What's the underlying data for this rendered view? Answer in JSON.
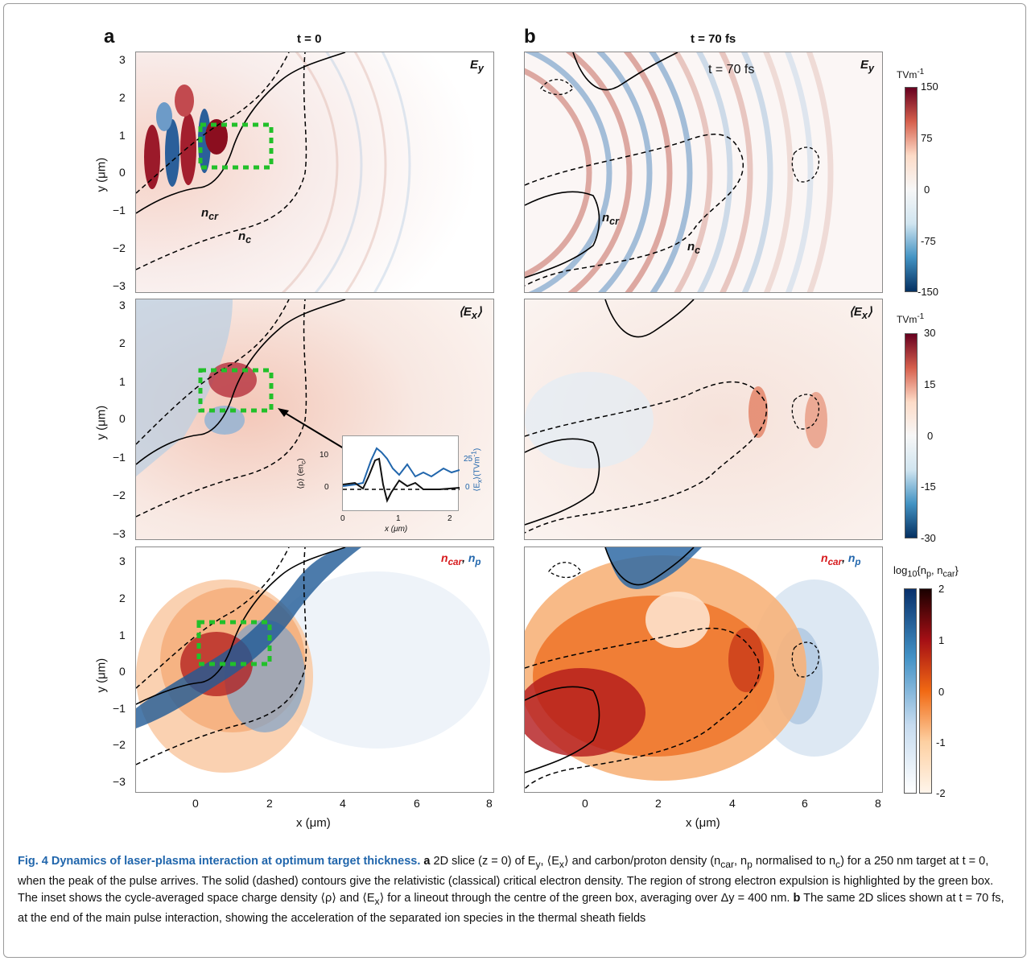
{
  "figure": {
    "panel_a": "a",
    "panel_b": "b",
    "col_a_title": "t = 0",
    "col_b_title": "t = 70 fs",
    "time_annotation": "t = 70 fs",
    "labels": {
      "ey": "E",
      "ey_sub": "y",
      "ex": "⟨E",
      "ex_sub": "x",
      "ex_close": "⟩",
      "ncar": "n",
      "ncar_sub": "car",
      "np": "n",
      "np_sub": "p",
      "ncr": "n",
      "ncr_sub": "cr",
      "nc": "n",
      "nc_sub": "c"
    },
    "y_axis_label": "y (μm)",
    "x_axis_label": "x (μm)",
    "y_ticks": [
      "3",
      "2",
      "1",
      "0",
      "−1",
      "−2",
      "−3"
    ],
    "x_ticks": [
      "0",
      "2",
      "4",
      "6",
      "8"
    ],
    "colorbar_ey": {
      "unit": "TVm",
      "unit_sup": "-1",
      "ticks": [
        "150",
        "75",
        "0",
        "-75",
        "-150"
      ]
    },
    "colorbar_ex": {
      "unit": "TVm",
      "unit_sup": "-1",
      "ticks": [
        "30",
        "15",
        "0",
        "-15",
        "-30"
      ]
    },
    "colorbar_density": {
      "label": "log",
      "label_sub": "10",
      "label_rest": "{n",
      "label_sub2": "p",
      "label_mid": ", n",
      "label_sub3": "car",
      "label_end": "}",
      "ticks": [
        "2",
        "1",
        "0",
        "-1",
        "-2"
      ]
    },
    "inset": {
      "y_left_label": "⟨ρ⟩ (en",
      "y_left_sub": "c",
      "y_left_end": ")",
      "y_right_label": "⟨E",
      "y_right_sub": "x",
      "y_right_end": "⟩(TVm",
      "y_right_sup": "-1",
      "y_right_close": ")",
      "x_label": "x (μm)",
      "x_ticks": [
        "0",
        "1",
        "2"
      ],
      "y_left_ticks": [
        "10",
        "0"
      ],
      "y_right_ticks": [
        "25",
        "0"
      ]
    }
  },
  "caption": {
    "title": "Fig. 4 Dynamics of laser-plasma interaction at optimum target thickness.",
    "a_letter": "a",
    "a_text": " 2D slice (z = 0) of E",
    "a_text_sub": "y",
    "a_text2": ",  ⟨E",
    "a_text2_sub": "x",
    "a_text3": "⟩  and carbon/proton density (n",
    "a_text3_sub": "car",
    "a_text4": ", n",
    "a_text4_sub": "p",
    "a_text5": " normalised to n",
    "a_text5_sub": "c",
    "a_text6": ") for a 250 nm target at t = 0, when the peak of the pulse arrives. The solid (dashed) contours give the relativistic (classical) critical electron density. The region of strong electron expulsion is highlighted by the green box. The inset shows the cycle-averaged space charge density  ⟨ρ⟩  and  ⟨E",
    "a_text6_sub": "x",
    "a_text7": "⟩  for a lineout through the centre of the green box, averaging over Δy = 400 nm.",
    "b_letter": "b",
    "b_text": " The same 2D slices shown at t = 70 fs, at the end of the main pulse interaction, showing the acceleration of the separated ion species in the thermal sheath fields"
  },
  "colors": {
    "red": "#b2182b",
    "blue": "#2166ac",
    "green": "#22c02a",
    "orange": "#f07a1a",
    "dark_red": "#8b0000"
  }
}
